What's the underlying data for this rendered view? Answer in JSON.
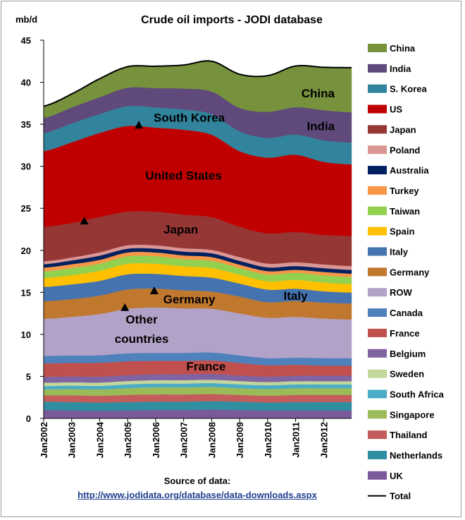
{
  "chart_data": {
    "type": "area",
    "stacked": true,
    "title": "Crude oil imports - JODI database",
    "ylabel": "mb/d",
    "ylim": [
      0,
      45
    ],
    "yticks": [
      0,
      5,
      10,
      15,
      20,
      25,
      30,
      35,
      40,
      45
    ],
    "x_start": 2002.0,
    "x_end": 2013.0,
    "xticks": [
      "Jan2002",
      "Jan2003",
      "Jan2004",
      "Jan2005",
      "Jan2006",
      "Jan2007",
      "Jan2008",
      "Jan2009",
      "Jan2010",
      "Jan2011",
      "Jan2012"
    ],
    "x_knots": [
      2002.0,
      2003.0,
      2004.0,
      2005.0,
      2006.0,
      2007.0,
      2008.0,
      2009.0,
      2010.0,
      2011.0,
      2012.0,
      2013.0
    ],
    "series": [
      {
        "name": "UK",
        "color": "#7a5a9a",
        "values": [
          1.0,
          0.95,
          0.9,
          0.95,
          1.0,
          1.0,
          1.05,
          1.0,
          0.95,
          0.95,
          0.95,
          0.95
        ]
      },
      {
        "name": "Netherlands",
        "color": "#2f8fa0",
        "values": [
          1.0,
          1.0,
          1.0,
          1.0,
          1.0,
          1.0,
          1.0,
          1.0,
          0.95,
          1.0,
          1.0,
          1.0
        ]
      },
      {
        "name": "Thailand",
        "color": "#c45c5c",
        "values": [
          0.75,
          0.8,
          0.8,
          0.85,
          0.85,
          0.85,
          0.85,
          0.8,
          0.8,
          0.85,
          0.85,
          0.85
        ]
      },
      {
        "name": "Singapore",
        "color": "#9bbb59",
        "values": [
          0.7,
          0.75,
          0.75,
          0.8,
          0.85,
          0.85,
          0.85,
          0.8,
          0.8,
          0.8,
          0.8,
          0.8
        ]
      },
      {
        "name": "South Africa",
        "color": "#4bacc6",
        "values": [
          0.4,
          0.4,
          0.42,
          0.45,
          0.45,
          0.45,
          0.45,
          0.45,
          0.45,
          0.45,
          0.45,
          0.45
        ]
      },
      {
        "name": "Sweden",
        "color": "#c4d79b",
        "values": [
          0.4,
          0.4,
          0.4,
          0.4,
          0.4,
          0.4,
          0.4,
          0.4,
          0.38,
          0.38,
          0.38,
          0.38
        ]
      },
      {
        "name": "Belgium",
        "color": "#8064a2",
        "values": [
          0.7,
          0.7,
          0.7,
          0.7,
          0.7,
          0.7,
          0.7,
          0.65,
          0.65,
          0.65,
          0.65,
          0.65
        ]
      },
      {
        "name": "France",
        "color": "#c0504d",
        "values": [
          1.6,
          1.6,
          1.65,
          1.65,
          1.6,
          1.6,
          1.6,
          1.5,
          1.35,
          1.3,
          1.2,
          1.2
        ]
      },
      {
        "name": "Canada",
        "color": "#4f81bd",
        "values": [
          0.9,
          0.9,
          0.9,
          0.95,
          0.95,
          0.95,
          0.95,
          0.9,
          0.85,
          0.85,
          0.9,
          0.9
        ]
      },
      {
        "name": "ROW",
        "color": "#b3a2c7",
        "values": [
          4.4,
          4.6,
          4.9,
          5.3,
          5.4,
          5.3,
          5.2,
          5.0,
          4.8,
          4.85,
          4.7,
          4.6
        ]
      },
      {
        "name": "Germany",
        "color": "#c0782f",
        "values": [
          2.1,
          2.1,
          2.2,
          2.3,
          2.25,
          2.15,
          2.05,
          2.0,
          1.85,
          1.9,
          1.9,
          1.9
        ]
      },
      {
        "name": "Italy",
        "color": "#4473b0",
        "values": [
          1.7,
          1.75,
          1.75,
          1.8,
          1.75,
          1.7,
          1.65,
          1.55,
          1.5,
          1.45,
          1.35,
          1.3
        ]
      },
      {
        "name": "Spain",
        "color": "#ffc000",
        "values": [
          1.05,
          1.1,
          1.2,
          1.25,
          1.2,
          1.15,
          1.15,
          1.05,
          1.0,
          1.05,
          1.05,
          1.0
        ]
      },
      {
        "name": "Taiwan",
        "color": "#92d050",
        "values": [
          0.8,
          0.85,
          0.85,
          0.9,
          0.9,
          0.85,
          0.85,
          0.8,
          0.8,
          0.85,
          0.85,
          0.85
        ]
      },
      {
        "name": "Turkey",
        "color": "#f79646",
        "values": [
          0.45,
          0.45,
          0.45,
          0.45,
          0.45,
          0.45,
          0.45,
          0.4,
          0.4,
          0.35,
          0.4,
          0.4
        ]
      },
      {
        "name": "Australia",
        "color": "#002060",
        "values": [
          0.4,
          0.45,
          0.5,
          0.45,
          0.45,
          0.45,
          0.45,
          0.45,
          0.45,
          0.45,
          0.45,
          0.45
        ]
      },
      {
        "name": "Poland",
        "color": "#da9694",
        "values": [
          0.35,
          0.35,
          0.4,
          0.4,
          0.4,
          0.4,
          0.4,
          0.45,
          0.45,
          0.45,
          0.45,
          0.45
        ]
      },
      {
        "name": "Japan",
        "color": "#953735",
        "values": [
          4.1,
          4.1,
          4.2,
          4.0,
          4.0,
          4.0,
          3.9,
          3.6,
          3.6,
          3.6,
          3.5,
          3.6
        ]
      },
      {
        "name": "US",
        "color": "#c00000",
        "values": [
          9.0,
          9.6,
          10.0,
          10.2,
          10.0,
          10.1,
          9.8,
          9.0,
          9.0,
          9.2,
          8.7,
          8.5
        ]
      },
      {
        "name": "S. Korea",
        "color": "#31849b",
        "values": [
          2.15,
          2.25,
          2.25,
          2.35,
          2.4,
          2.4,
          2.45,
          2.35,
          2.35,
          2.4,
          2.55,
          2.6
        ]
      },
      {
        "name": "India",
        "color": "#604a7b",
        "values": [
          1.8,
          1.9,
          2.0,
          2.2,
          2.3,
          2.5,
          2.7,
          2.8,
          3.1,
          3.25,
          3.6,
          3.6
        ]
      },
      {
        "name": "China",
        "color": "#76923c",
        "values": [
          1.4,
          1.6,
          2.2,
          2.5,
          2.6,
          2.8,
          3.6,
          4.0,
          4.3,
          4.9,
          5.1,
          5.3
        ]
      }
    ],
    "total_line": {
      "name": "Total",
      "color": "#000000"
    },
    "legend_order": [
      "China",
      "India",
      "S. Korea",
      "US",
      "Japan",
      "Poland",
      "Australia",
      "Turkey",
      "Taiwan",
      "Spain",
      "Italy",
      "Germany",
      "ROW",
      "Canada",
      "France",
      "Belgium",
      "Sweden",
      "South Africa",
      "Singapore",
      "Thailand",
      "Netherlands",
      "UK",
      "Total"
    ],
    "legend_position": "right",
    "annotations": [
      {
        "text": "China",
        "x": 2011.8,
        "y": 38.2
      },
      {
        "text": "India",
        "x": 2011.9,
        "y": 34.3
      },
      {
        "text": "South Korea",
        "x": 2007.2,
        "y": 35.3
      },
      {
        "text": "United States",
        "x": 2007.0,
        "y": 28.4
      },
      {
        "text": "Japan",
        "x": 2006.9,
        "y": 22.0
      },
      {
        "text": "Germany",
        "x": 2007.2,
        "y": 13.7
      },
      {
        "text": "Italy",
        "x": 2011.0,
        "y": 14.1
      },
      {
        "text": "Other",
        "x": 2005.5,
        "y": 11.3
      },
      {
        "text": "countries",
        "x": 2005.5,
        "y": 9.0
      },
      {
        "text": "France",
        "x": 2007.8,
        "y": 5.7
      }
    ],
    "markers": [
      {
        "x": 2003.45,
        "y": 23.5
      },
      {
        "x": 2004.9,
        "y": 13.2
      },
      {
        "x": 2005.4,
        "y": 34.9
      },
      {
        "x": 2005.95,
        "y": 15.2
      }
    ]
  },
  "source": {
    "label": "Source of data:",
    "link": "http://www.jodidata.org/database/data-downloads.aspx"
  }
}
